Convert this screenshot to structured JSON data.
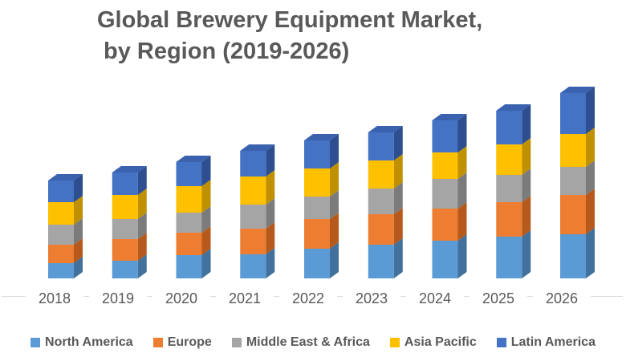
{
  "title": {
    "line1": "Global Brewery Equipment Market,",
    "line2": "by Region (2019-2026)"
  },
  "chart_data": {
    "type": "bar",
    "variant": "3d-stacked-column",
    "title": "Global Brewery Equipment Market, by Region (2019-2026)",
    "xlabel": "",
    "ylabel": "",
    "value_axis": "none shown (relative units estimated from pixel heights)",
    "grid": false,
    "legend_position": "bottom",
    "categories": [
      "2018",
      "2019",
      "2020",
      "2021",
      "2022",
      "2023",
      "2024",
      "2025",
      "2026"
    ],
    "series": [
      {
        "name": "North America",
        "colors": {
          "front": "#5B9BD5",
          "side": "#41719C",
          "top": "#6FA7DB"
        },
        "values": [
          19,
          22,
          29,
          30,
          37,
          42,
          47,
          52,
          55
        ]
      },
      {
        "name": "Europe",
        "colors": {
          "front": "#ED7D31",
          "side": "#B55A1C",
          "top": "#F0905A"
        },
        "values": [
          23,
          27,
          28,
          32,
          37,
          38,
          40,
          43,
          49
        ]
      },
      {
        "name": "Middle East & Africa",
        "colors": {
          "front": "#A5A5A5",
          "side": "#7B7B7B",
          "top": "#B5B5B5"
        },
        "values": [
          25,
          25,
          25,
          30,
          28,
          32,
          37,
          34,
          35
        ]
      },
      {
        "name": "Asia Pacific",
        "colors": {
          "front": "#FFC000",
          "side": "#BF9000",
          "top": "#E0AC17"
        },
        "values": [
          28,
          30,
          33,
          35,
          35,
          35,
          33,
          38,
          41
        ]
      },
      {
        "name": "Latin America",
        "colors": {
          "front": "#4472C4",
          "side": "#2D4E8F",
          "top": "#3A62AE"
        },
        "values": [
          27,
          28,
          30,
          32,
          35,
          35,
          40,
          42,
          51
        ]
      }
    ]
  }
}
